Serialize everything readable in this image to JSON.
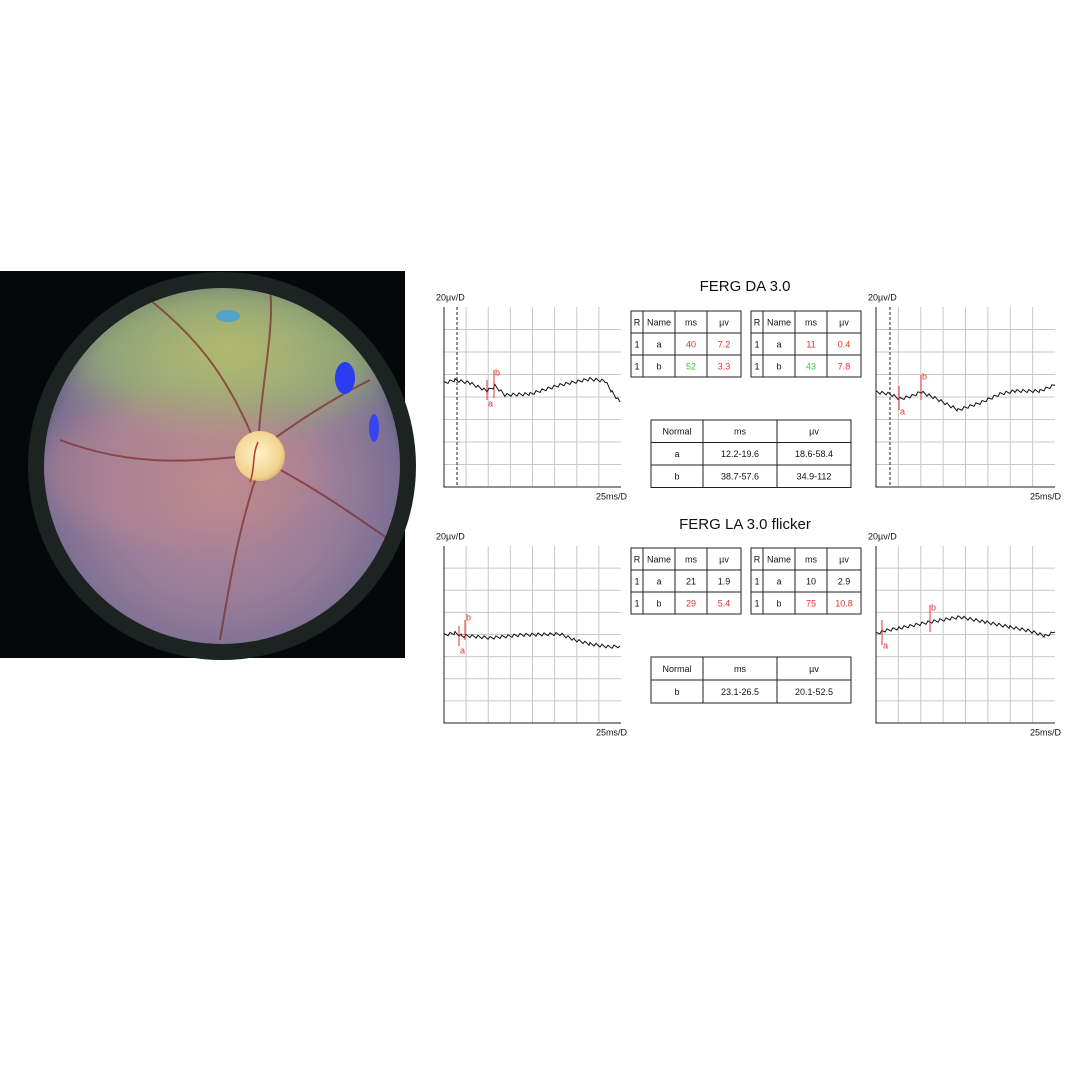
{
  "sections": [
    {
      "title": "FERG DA 3.0",
      "left_panel": {
        "y_scale": "20µv/D",
        "x_scale": "25ms/D",
        "markers": [
          "a",
          "b"
        ]
      },
      "right_panel": {
        "y_scale": "20µv/D",
        "x_scale": "25ms/D",
        "markers": [
          "a",
          "b"
        ]
      },
      "left_table": {
        "header": [
          "R",
          "Name",
          "ms",
          "µv"
        ],
        "rows": [
          [
            "1",
            "a",
            "40",
            "7.2"
          ],
          [
            "1",
            "b",
            "52",
            "3.3"
          ]
        ],
        "colors": [
          [
            null,
            null,
            "#e53030",
            "#e53030"
          ],
          [
            null,
            null,
            "#3cc83c",
            "#e53030"
          ]
        ]
      },
      "right_table": {
        "header": [
          "R",
          "Name",
          "ms",
          "µv"
        ],
        "rows": [
          [
            "1",
            "a",
            "11",
            "0.4"
          ],
          [
            "1",
            "b",
            "43",
            "7.8"
          ]
        ],
        "colors": [
          [
            null,
            null,
            "#e53030",
            "#e53030"
          ],
          [
            null,
            null,
            "#3cc83c",
            "#e53030"
          ]
        ]
      },
      "normal_table": {
        "header": [
          "Normal",
          "ms",
          "µv"
        ],
        "rows": [
          [
            "a",
            "12.2-19.6",
            "18.6-58.4"
          ],
          [
            "b",
            "38.7-57.6",
            "34.9-112"
          ]
        ]
      }
    },
    {
      "title": "FERG LA 3.0 flicker",
      "left_panel": {
        "y_scale": "20µv/D",
        "x_scale": "25ms/D",
        "markers": [
          "a",
          "b"
        ]
      },
      "right_panel": {
        "y_scale": "20µv/D",
        "x_scale": "25ms/D",
        "markers": [
          "a",
          "b"
        ]
      },
      "left_table": {
        "header": [
          "R",
          "Name",
          "ms",
          "µv"
        ],
        "rows": [
          [
            "1",
            "a",
            "21",
            "1.9"
          ],
          [
            "1",
            "b",
            "29",
            "5.4"
          ]
        ],
        "colors": [
          [
            null,
            null,
            null,
            null
          ],
          [
            null,
            null,
            "#e53030",
            "#e53030"
          ]
        ]
      },
      "right_table": {
        "header": [
          "R",
          "Name",
          "ms",
          "µv"
        ],
        "rows": [
          [
            "1",
            "a",
            "10",
            "2.9"
          ],
          [
            "1",
            "b",
            "75",
            "10.8"
          ]
        ],
        "colors": [
          [
            null,
            null,
            null,
            null
          ],
          [
            null,
            null,
            "#e53030",
            "#e53030"
          ]
        ]
      },
      "normal_table": {
        "header": [
          "Normal",
          "ms",
          "µv"
        ],
        "rows": [
          [
            "b",
            "23.1-26.5",
            "20.1-52.5"
          ]
        ]
      }
    }
  ]
}
